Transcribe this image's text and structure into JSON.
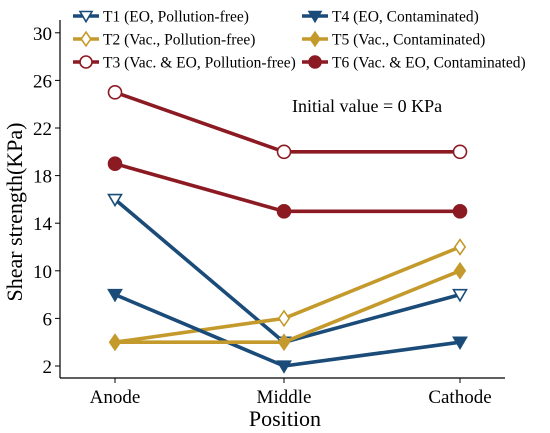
{
  "chart_data": {
    "type": "line",
    "title": "",
    "xlabel": "Position",
    "ylabel": "Shear strength(KPa)",
    "categories": [
      "Anode",
      "Middle",
      "Cathode"
    ],
    "ylim": [
      1,
      32
    ],
    "yticks": [
      2,
      6,
      10,
      14,
      18,
      22,
      26,
      30
    ],
    "grid": false,
    "legend_position": "top",
    "annotation": "Initial value = 0 KPa",
    "series": [
      {
        "name": "T1 (EO, Pollution-free)",
        "values": [
          16,
          4,
          8
        ],
        "color": "#1b4b78",
        "marker": "triangle-down",
        "filled": false
      },
      {
        "name": "T2 (Vac., Pollution-free)",
        "values": [
          4,
          6,
          12
        ],
        "color": "#c49a2c",
        "marker": "diamond",
        "filled": false
      },
      {
        "name": "T3 (Vac. & EO, Pollution-free)",
        "values": [
          25,
          20,
          20
        ],
        "color": "#8c1a22",
        "marker": "circle",
        "filled": false
      },
      {
        "name": "T4 (EO, Contaminated)",
        "values": [
          8,
          2,
          4
        ],
        "color": "#1b4b78",
        "marker": "triangle-down",
        "filled": true
      },
      {
        "name": "T5 (Vac., Contaminated)",
        "values": [
          4,
          4,
          10
        ],
        "color": "#c49a2c",
        "marker": "diamond",
        "filled": true
      },
      {
        "name": "T6 (Vac. & EO, Contaminated)",
        "values": [
          19,
          15,
          15
        ],
        "color": "#8c1a22",
        "marker": "circle",
        "filled": true
      }
    ]
  }
}
